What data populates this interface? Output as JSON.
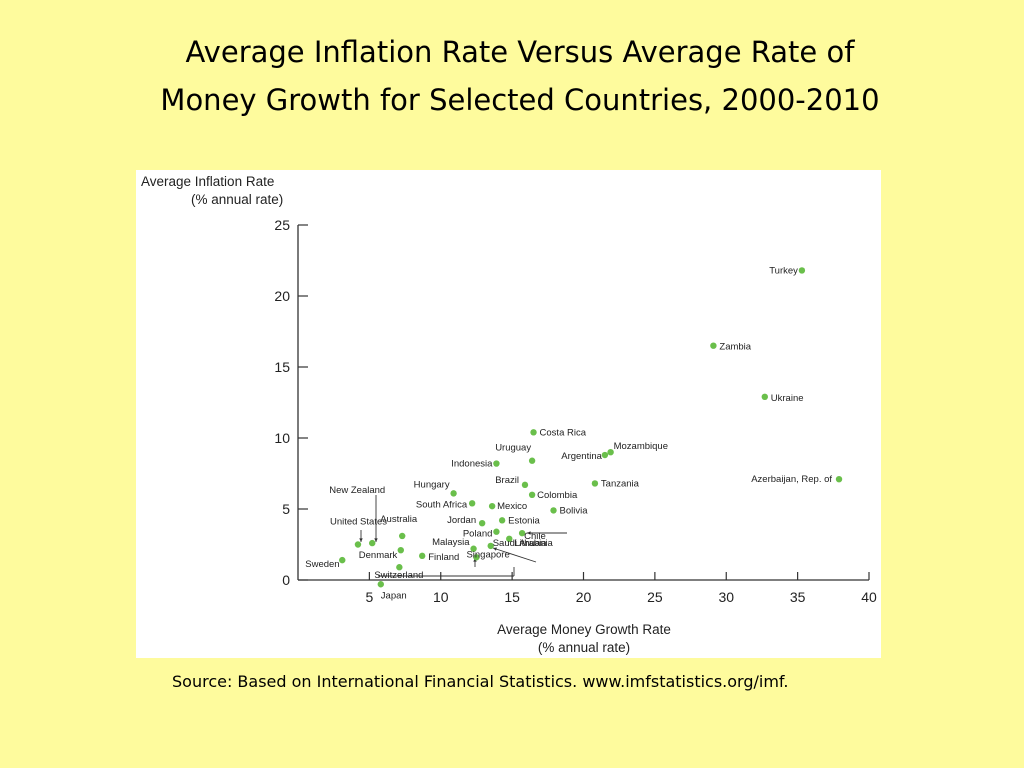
{
  "slide": {
    "title_line1": "Average Inflation Rate Versus Average Rate of",
    "title_line2": "Money Growth for Selected Countries, 2000-2010",
    "source": "Source: Based on International Financial Statistics. www.imfstatistics.org/imf."
  },
  "colors": {
    "background": "#fefb9d",
    "point": "#6abf4b",
    "panel": "#ffffff"
  },
  "chart_data": {
    "type": "scatter",
    "ylabel_line1": "Average Inflation Rate",
    "ylabel_line2": "(% annual rate)",
    "xlabel_line1": "Average Money Growth Rate",
    "xlabel_line2": "(% annual rate)",
    "xlim": [
      0,
      40
    ],
    "ylim": [
      0,
      25
    ],
    "x_ticks": [
      5,
      10,
      15,
      20,
      25,
      30,
      35,
      40
    ],
    "y_ticks": [
      0,
      5,
      10,
      15,
      20,
      25
    ],
    "grid": false,
    "points": [
      {
        "name": "Turkey",
        "x": 35.3,
        "y": 21.8
      },
      {
        "name": "Zambia",
        "x": 29.1,
        "y": 16.5
      },
      {
        "name": "Ukraine",
        "x": 32.7,
        "y": 12.9
      },
      {
        "name": "Azerbaijan, Rep. of",
        "x": 37.9,
        "y": 7.1
      },
      {
        "name": "Costa Rica",
        "x": 16.5,
        "y": 10.4
      },
      {
        "name": "Mozambique",
        "x": 21.9,
        "y": 9.0
      },
      {
        "name": "Argentina",
        "x": 21.5,
        "y": 8.8
      },
      {
        "name": "Uruguay",
        "x": 16.4,
        "y": 8.4
      },
      {
        "name": "Indonesia",
        "x": 13.9,
        "y": 8.2
      },
      {
        "name": "Tanzania",
        "x": 20.8,
        "y": 6.8
      },
      {
        "name": "Brazil",
        "x": 15.9,
        "y": 6.7
      },
      {
        "name": "Colombia",
        "x": 16.4,
        "y": 6.0
      },
      {
        "name": "Hungary",
        "x": 10.9,
        "y": 6.1
      },
      {
        "name": "South Africa",
        "x": 12.2,
        "y": 5.4
      },
      {
        "name": "Mexico",
        "x": 13.6,
        "y": 5.2
      },
      {
        "name": "Bolivia",
        "x": 17.9,
        "y": 4.9
      },
      {
        "name": "Jordan",
        "x": 12.9,
        "y": 4.0
      },
      {
        "name": "Estonia",
        "x": 14.3,
        "y": 4.2
      },
      {
        "name": "Poland",
        "x": 13.9,
        "y": 3.4
      },
      {
        "name": "Chile",
        "x": 15.7,
        "y": 3.3
      },
      {
        "name": "Lithuania",
        "x": 14.8,
        "y": 2.9
      },
      {
        "name": "Malaysia",
        "x": 12.3,
        "y": 2.2
      },
      {
        "name": "Saudi Arabia",
        "x": 13.5,
        "y": 2.4
      },
      {
        "name": "Singapore",
        "x": 12.5,
        "y": 1.6
      },
      {
        "name": "United States",
        "x": 4.2,
        "y": 2.5
      },
      {
        "name": "New Zealand",
        "x": 5.2,
        "y": 2.6
      },
      {
        "name": "Australia",
        "x": 7.3,
        "y": 3.1
      },
      {
        "name": "Denmark",
        "x": 7.2,
        "y": 2.1
      },
      {
        "name": "Finland",
        "x": 8.7,
        "y": 1.7
      },
      {
        "name": "Sweden",
        "x": 3.1,
        "y": 1.4
      },
      {
        "name": "Switzerland",
        "x": 7.1,
        "y": 0.9
      },
      {
        "name": "Japan",
        "x": 5.8,
        "y": -0.3
      }
    ]
  }
}
